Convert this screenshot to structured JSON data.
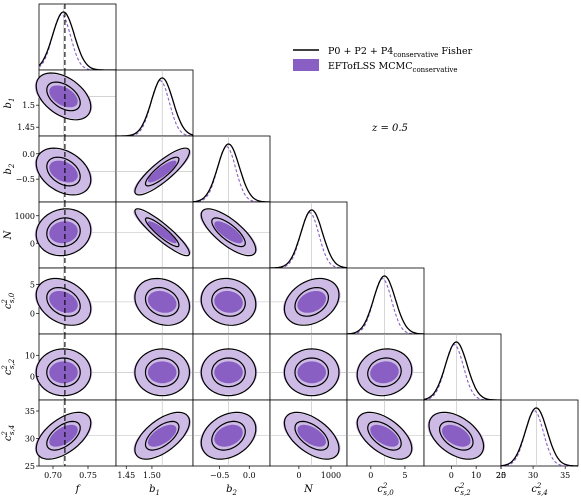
{
  "chart_data": {
    "type": "corner",
    "annotation": "z = 0.5",
    "legend": {
      "placement": "top-right",
      "items": [
        {
          "label": "P0 + P2 + P4|conservative Fisher",
          "style": "line",
          "color": "#000000"
        },
        {
          "label": "EFTofLSS MCMC|conservative",
          "style": "fill",
          "color": "#8a5fc4"
        }
      ]
    },
    "colors": {
      "fisher": "#000000",
      "mcmc_inner": "#8a5fc4",
      "mcmc_outer": "#cdbbe6",
      "truth_line": "#bbbbbb",
      "dash_line": "#000000"
    },
    "parameters": [
      {
        "label": "f",
        "mean": 0.715,
        "ticks": [
          0.7,
          0.75
        ],
        "tick_labels": [
          "0.70",
          "0.75"
        ],
        "range": [
          0.68,
          0.79
        ]
      },
      {
        "label": "b1",
        "mean": 1.52,
        "ticks": [
          1.45,
          1.5
        ],
        "tick_labels": [
          "1.45",
          "1.50"
        ],
        "range": [
          1.43,
          1.58
        ]
      },
      {
        "label": "b2",
        "mean": -0.35,
        "ticks": [
          -0.5,
          0.0
        ],
        "tick_labels": [
          "−0.5",
          "0.0"
        ],
        "range": [
          -0.95,
          0.35
        ]
      },
      {
        "label": "N",
        "mean": 400,
        "ticks": [
          0,
          1000
        ],
        "tick_labels": [
          "0",
          "1000"
        ],
        "range": [
          -900,
          1500
        ]
      },
      {
        "label": "c2s,0",
        "mean": 2.0,
        "ticks": [
          0,
          5
        ],
        "tick_labels": [
          "0",
          "5"
        ],
        "range": [
          -3.5,
          7.8
        ]
      },
      {
        "label": "c2s,2",
        "mean": 2.0,
        "ticks": [
          0,
          10,
          20
        ],
        "tick_labels": [
          "0",
          "10",
          "20"
        ],
        "range": [
          -11,
          20
        ]
      },
      {
        "label": "c2s,4",
        "mean": 30.5,
        "ticks": [
          25,
          30,
          35
        ],
        "tick_labels": [
          "25",
          "30",
          "35"
        ],
        "range": [
          25,
          37
        ]
      }
    ],
    "y_tick_overrides": {
      "1": {
        "ticks": [
          1.45,
          1.5
        ],
        "tick_labels": [
          "1.45",
          "1.5"
        ]
      },
      "5": {
        "ticks": [
          0,
          10
        ],
        "tick_labels": [
          "0",
          "10"
        ]
      }
    },
    "dashed_reference": {
      "parameter": "f",
      "value": 0.717
    },
    "x_axis_labels": [
      "f",
      "b1",
      "b2",
      "N",
      "c2s,0",
      "c2s,2",
      "c2s,4"
    ],
    "y_axis_labels": [
      "",
      "b1",
      "b2",
      "N",
      "c2s,0",
      "c2s,2",
      "c2s,4"
    ]
  }
}
